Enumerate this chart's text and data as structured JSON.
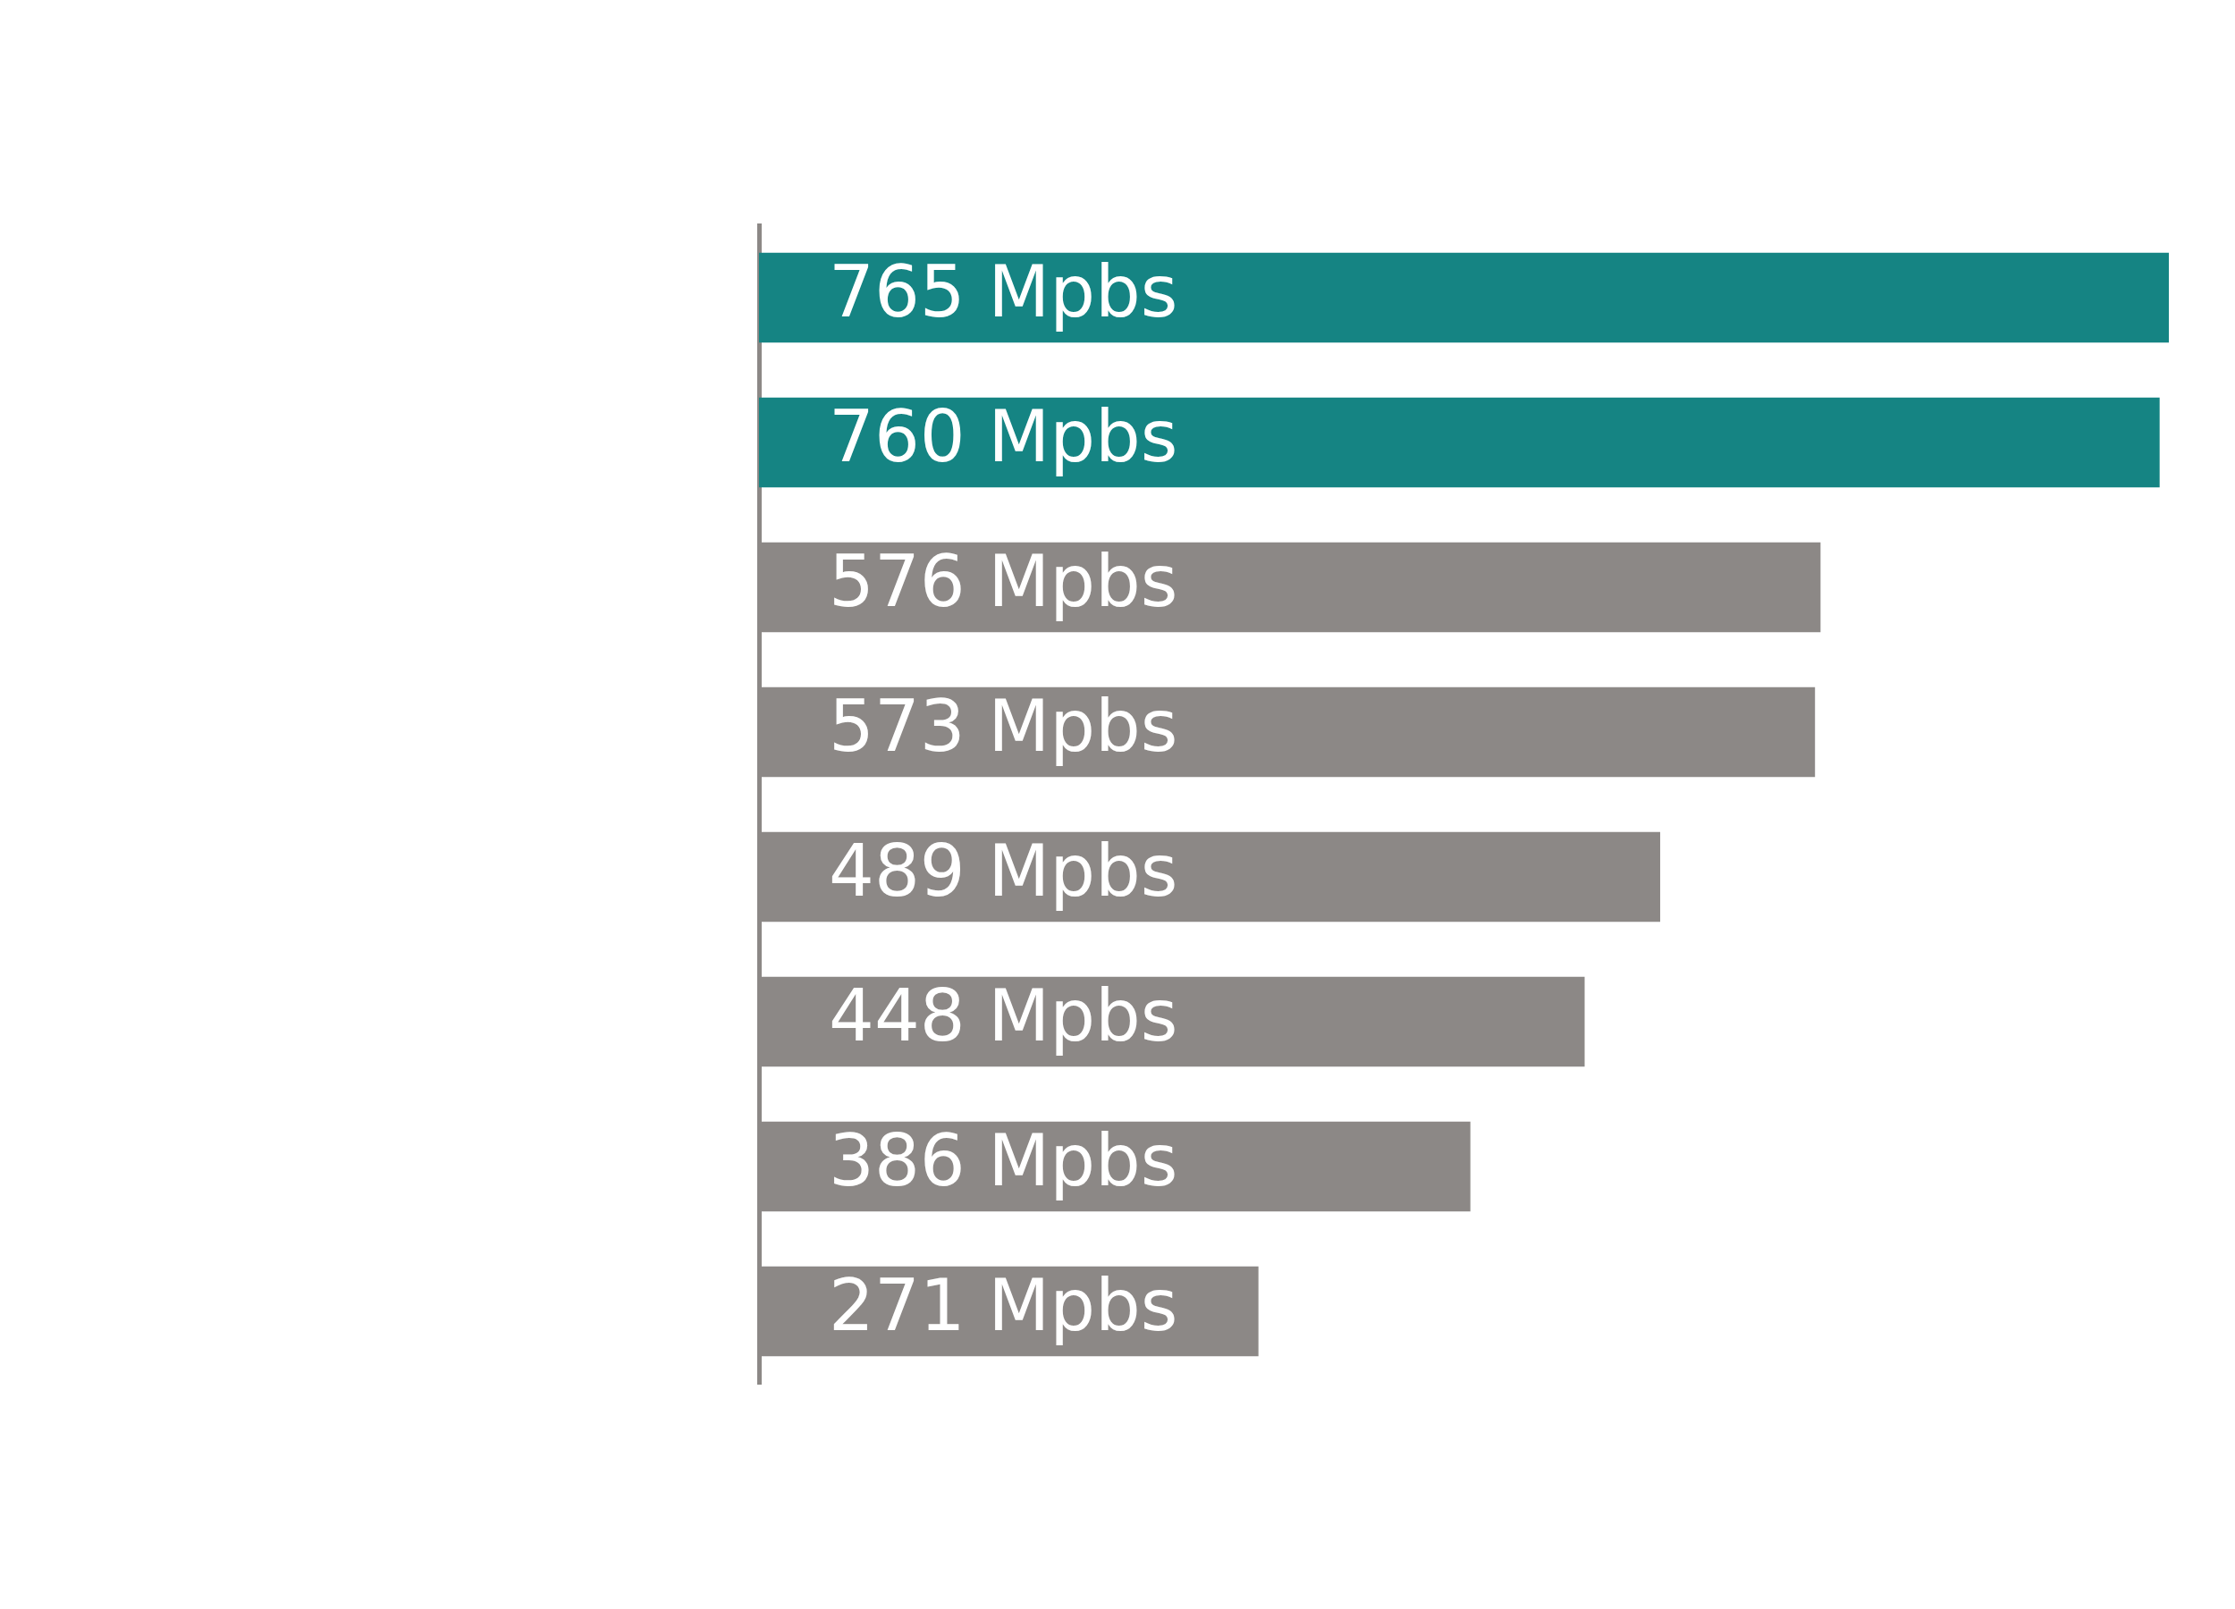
{
  "chart_data": {
    "type": "bar",
    "orientation": "horizontal",
    "categories": [
      null,
      null,
      null,
      null,
      null,
      null,
      null,
      null
    ],
    "values": [
      765,
      760,
      576,
      573,
      489,
      448,
      386,
      271
    ],
    "colors": [
      "#158483",
      "#158483",
      "#8c8886",
      "#8c8886",
      "#8c8886",
      "#8c8886",
      "#8c8886",
      "#8c8886"
    ],
    "value_labels": [
      "765 Mpbs",
      "760 Mpbs",
      "576 Mpbs",
      "573 Mpbs",
      "489 Mpbs",
      "448 Mpbs",
      "386 Mpbs",
      "271 Mpbs"
    ],
    "grid": false,
    "legend": false
  }
}
